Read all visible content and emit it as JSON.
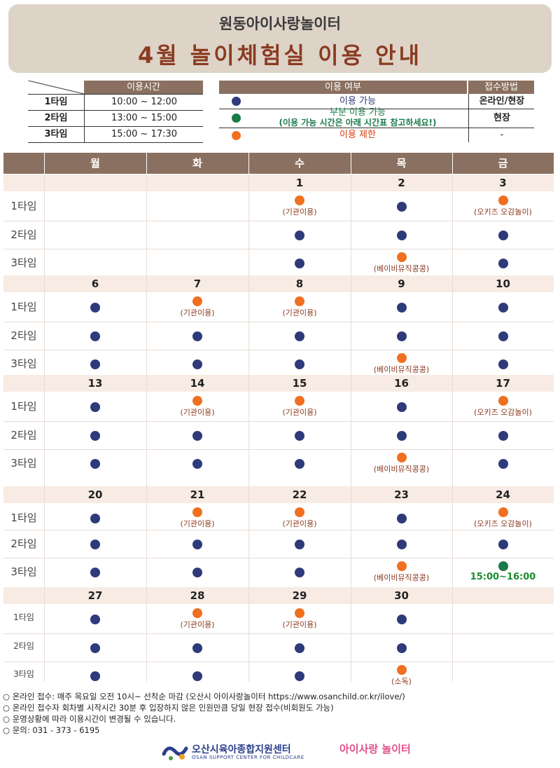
{
  "header": {
    "subtitle": "원동아이사랑놀이터",
    "title": "4월 놀이체험실 이용 안내"
  },
  "time_table": {
    "header": "이용시간",
    "rows": [
      {
        "name": "1타임",
        "time": "10:00 ~ 12:00"
      },
      {
        "name": "2타임",
        "time": "13:00 ~ 15:00"
      },
      {
        "name": "3타임",
        "time": "15:00 ~ 17:30"
      }
    ]
  },
  "legend": {
    "header_use": "이용 여부",
    "header_method": "접수방법",
    "rows": [
      {
        "color": "#2e3a7a",
        "text": "이용 가능",
        "text2": "",
        "method": "온라인/현장"
      },
      {
        "color": "#1a7a4a",
        "text": "부분 이용 가능",
        "text2": "(이용 가능 시간은 아래 시간표 참고하세요!)",
        "method": "현장"
      },
      {
        "color": "#f07020",
        "text": "이용 제한",
        "text2": "",
        "method": "-"
      }
    ]
  },
  "colors": {
    "available": "#2e3a7a",
    "partial": "#1a7a4a",
    "restricted": "#f07020"
  },
  "calendar": {
    "days": [
      "월",
      "화",
      "수",
      "목",
      "금"
    ],
    "weeks": [
      {
        "dates": [
          "",
          "",
          "1",
          "2",
          "3"
        ],
        "label_small": false,
        "slots": [
          {
            "label": "1타임",
            "cells": [
              null,
              null,
              {
                "s": "r",
                "note": "(기관이용)"
              },
              {
                "s": "a"
              },
              {
                "s": "r",
                "note": "(오키즈 오감놀이)"
              }
            ]
          },
          {
            "label": "2타임",
            "cells": [
              null,
              null,
              {
                "s": "a"
              },
              {
                "s": "a"
              },
              {
                "s": "a"
              }
            ]
          },
          {
            "label": "3타임",
            "cells": [
              null,
              null,
              {
                "s": "a"
              },
              {
                "s": "r",
                "note": "(베이비뮤직콩콩)"
              },
              {
                "s": "a"
              }
            ]
          }
        ]
      },
      {
        "dates": [
          "6",
          "7",
          "8",
          "9",
          "10"
        ],
        "label_small": false,
        "slots": [
          {
            "label": "1타임",
            "cells": [
              {
                "s": "a"
              },
              {
                "s": "r",
                "note": "(기관이용)"
              },
              {
                "s": "r",
                "note": "(기관이용)"
              },
              {
                "s": "a"
              },
              {
                "s": "a"
              }
            ]
          },
          {
            "label": "2타임",
            "cells": [
              {
                "s": "a"
              },
              {
                "s": "a"
              },
              {
                "s": "a"
              },
              {
                "s": "a"
              },
              {
                "s": "a"
              }
            ]
          },
          {
            "label": "3타임",
            "cells": [
              {
                "s": "a"
              },
              {
                "s": "a"
              },
              {
                "s": "a"
              },
              {
                "s": "r",
                "note": "(베이비뮤직콩콩)"
              },
              {
                "s": "a"
              }
            ]
          }
        ]
      },
      {
        "dates": [
          "13",
          "14",
          "15",
          "16",
          "17"
        ],
        "label_small": false,
        "slots": [
          {
            "label": "1타임",
            "cells": [
              {
                "s": "a"
              },
              {
                "s": "r",
                "note": "(기관이용)"
              },
              {
                "s": "r",
                "note": "(기관이용)"
              },
              {
                "s": "a"
              },
              {
                "s": "r",
                "note": "(오키즈 오감놀이)"
              }
            ]
          },
          {
            "label": "2타임",
            "cells": [
              {
                "s": "a"
              },
              {
                "s": "a"
              },
              {
                "s": "a"
              },
              {
                "s": "a"
              },
              {
                "s": "a"
              }
            ]
          },
          {
            "label": "3타임",
            "cells": [
              {
                "s": "a"
              },
              {
                "s": "a"
              },
              {
                "s": "a"
              },
              {
                "s": "r",
                "note": "(베이비뮤직콩콩)"
              },
              {
                "s": "a"
              }
            ]
          }
        ]
      },
      {
        "dates": [
          "20",
          "21",
          "22",
          "23",
          "24"
        ],
        "label_small": false,
        "slots": [
          {
            "label": "1타임",
            "cells": [
              {
                "s": "a"
              },
              {
                "s": "r",
                "note": "(기관이용)"
              },
              {
                "s": "r",
                "note": "(기관이용)"
              },
              {
                "s": "a"
              },
              {
                "s": "r",
                "note": "(오키즈 오감놀이)"
              }
            ]
          },
          {
            "label": "2타임",
            "cells": [
              {
                "s": "a"
              },
              {
                "s": "a"
              },
              {
                "s": "a"
              },
              {
                "s": "a"
              },
              {
                "s": "a"
              }
            ]
          },
          {
            "label": "3타임",
            "cells": [
              {
                "s": "a"
              },
              {
                "s": "a"
              },
              {
                "s": "a"
              },
              {
                "s": "r",
                "note": "(베이비뮤직콩콩)"
              },
              {
                "s": "p",
                "note": "15:00~16:00"
              }
            ]
          }
        ]
      },
      {
        "dates": [
          "27",
          "28",
          "29",
          "30",
          ""
        ],
        "label_small": true,
        "slots": [
          {
            "label": "1타임",
            "cells": [
              {
                "s": "a"
              },
              {
                "s": "r",
                "note": "(기관이용)"
              },
              {
                "s": "r",
                "note": "(기관이용)"
              },
              {
                "s": "a"
              },
              null
            ]
          },
          {
            "label": "2타임",
            "cells": [
              {
                "s": "a"
              },
              {
                "s": "a"
              },
              {
                "s": "a"
              },
              {
                "s": "a"
              },
              null
            ]
          },
          {
            "label": "3타임",
            "cells": [
              {
                "s": "a"
              },
              {
                "s": "a"
              },
              {
                "s": "a"
              },
              {
                "s": "r",
                "note": "(소독)"
              },
              null
            ]
          }
        ]
      }
    ]
  },
  "notes": [
    "○ 온라인 접수: 매주 목요일 오전 10시~ 선착순 마감 (오산시 아이사랑놀이터 https://www.osanchild.or.kr/ilove/)",
    "○ 온라인 접수자 회차별 시작시간 30분 후 입장하지 않은 인원만큼 당일 현장 접수(비회원도 가능)",
    "○ 운영상황에 따라 이용시간이 변경될 수 있습니다.",
    "○ 문의: 031 - 373 - 6195"
  ],
  "footer": {
    "org_name": "오산시육아종합지원센터",
    "org_en": "OSAN SUPPORT CENTER FOR CHILDCARE",
    "logo2": "아이사랑 놀이터"
  }
}
